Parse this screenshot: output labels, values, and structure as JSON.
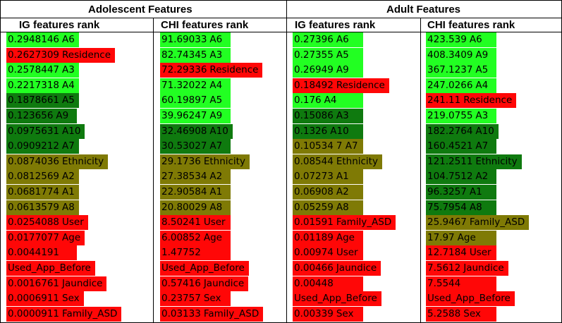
{
  "colors": {
    "light_green": "#22ff22",
    "dark_green": "#0f7a0f",
    "olive": "#7f7a05",
    "red": "#ff0707"
  },
  "headers": {
    "adolescent": "Adolescent Features",
    "adult": "Adult Features",
    "ig_adolescent": "IG features rank",
    "chi_adolescent": "CHI features rank",
    "ig_adult": "IG features rank",
    "chi_adult": "CHI features rank"
  },
  "columns": [
    {
      "rows": [
        {
          "value": "0.2948146",
          "feature": "A6",
          "color": "light_green"
        },
        {
          "value": "0.2627309",
          "feature": "Residence",
          "color": "red"
        },
        {
          "value": "0.2578447",
          "feature": "A3",
          "color": "light_green"
        },
        {
          "value": "0.2217318",
          "feature": "A4",
          "color": "light_green"
        },
        {
          "value": "0.1878661",
          "feature": "A5",
          "color": "dark_green"
        },
        {
          "value": "0.123656",
          "feature": "A9",
          "color": "dark_green"
        },
        {
          "value": "0.0975631",
          "feature": "A10",
          "color": "dark_green"
        },
        {
          "value": "0.0909212",
          "feature": "A7",
          "color": "dark_green"
        },
        {
          "value": "0.0874036",
          "feature": "Ethnicity",
          "color": "olive"
        },
        {
          "value": "0.0812569",
          "feature": "A2",
          "color": "olive"
        },
        {
          "value": "0.0681774",
          "feature": "A1",
          "color": "olive"
        },
        {
          "value": "0.0613579",
          "feature": "A8",
          "color": "olive"
        },
        {
          "value": "0.0254088",
          "feature": "User",
          "color": "red"
        },
        {
          "value": "0.0177077",
          "feature": "Age",
          "color": "red"
        },
        {
          "value": "0.0044191",
          "feature": "",
          "color": "red"
        },
        {
          "value": "Used_App_Before",
          "feature": "",
          "color": "red"
        },
        {
          "value": "0.0016761",
          "feature": "Jaundice",
          "color": "red"
        },
        {
          "value": "0.0006911",
          "feature": "Sex",
          "color": "red"
        },
        {
          "value": "0.0000911",
          "feature": "Family_ASD",
          "color": "red"
        }
      ]
    },
    {
      "rows": [
        {
          "value": "91.69033",
          "feature": "A6",
          "color": "light_green"
        },
        {
          "value": "82.74345",
          "feature": "A3",
          "color": "light_green"
        },
        {
          "value": "72.29336",
          "feature": "Residence",
          "color": "red"
        },
        {
          "value": "71.32022",
          "feature": "A4",
          "color": "light_green"
        },
        {
          "value": "60.19897",
          "feature": "A5",
          "color": "light_green"
        },
        {
          "value": "39.96247",
          "feature": "A9",
          "color": "light_green"
        },
        {
          "value": "32.46908",
          "feature": "A10",
          "color": "dark_green"
        },
        {
          "value": "30.53027",
          "feature": "A7",
          "color": "dark_green"
        },
        {
          "value": "29.1736",
          "feature": "Ethnicity",
          "color": "olive"
        },
        {
          "value": "27.38534",
          "feature": "A2",
          "color": "olive"
        },
        {
          "value": "22.90584",
          "feature": "A1",
          "color": "olive"
        },
        {
          "value": "20.80029",
          "feature": "A8",
          "color": "olive"
        },
        {
          "value": "8.50241",
          "feature": "User",
          "color": "red"
        },
        {
          "value": "6.00852",
          "feature": "Age",
          "color": "red"
        },
        {
          "value": "1.47752",
          "feature": "",
          "color": "red"
        },
        {
          "value": "Used_App_Before",
          "feature": "",
          "color": "red"
        },
        {
          "value": "0.57416",
          "feature": "Jaundice",
          "color": "red"
        },
        {
          "value": "0.23757",
          "feature": "Sex",
          "color": "red"
        },
        {
          "value": "0.03133",
          "feature": "Family_ASD",
          "color": "red"
        }
      ]
    },
    {
      "rows": [
        {
          "value": "0.27396",
          "feature": "A6",
          "color": "light_green"
        },
        {
          "value": "0.27355",
          "feature": "A5",
          "color": "light_green"
        },
        {
          "value": "0.26949",
          "feature": "A9",
          "color": "light_green"
        },
        {
          "value": "0.18492",
          "feature": "Residence",
          "color": "red"
        },
        {
          "value": "0.176",
          "feature": "A4",
          "color": "light_green"
        },
        {
          "value": "0.15086",
          "feature": "A3",
          "color": "dark_green"
        },
        {
          "value": "0.1326",
          "feature": "A10",
          "color": "dark_green"
        },
        {
          "value": "0.10534",
          "feature": "7 A7",
          "color": "olive"
        },
        {
          "value": "0.08544",
          "feature": "Ethnicity",
          "color": "olive"
        },
        {
          "value": "0.07273",
          "feature": "A1",
          "color": "olive"
        },
        {
          "value": "0.06908",
          "feature": "A2",
          "color": "olive"
        },
        {
          "value": "0.05259",
          "feature": "A8",
          "color": "olive"
        },
        {
          "value": "0.01591",
          "feature": "Family_ASD",
          "color": "red"
        },
        {
          "value": "0.01189",
          "feature": "Age",
          "color": "red"
        },
        {
          "value": "0.00974",
          "feature": "User",
          "color": "red"
        },
        {
          "value": "0.00466",
          "feature": "Jaundice",
          "color": "red"
        },
        {
          "value": "0.00448",
          "feature": "",
          "color": "red"
        },
        {
          "value": "Used_App_Before",
          "feature": "",
          "color": "red"
        },
        {
          "value": "0.00339",
          "feature": "Sex",
          "color": "red"
        }
      ]
    },
    {
      "rows": [
        {
          "value": "423.539",
          "feature": "A6",
          "color": "light_green"
        },
        {
          "value": "408.3409",
          "feature": "A9",
          "color": "light_green"
        },
        {
          "value": "367.1237",
          "feature": "A5",
          "color": "light_green"
        },
        {
          "value": "247.0266",
          "feature": "A4",
          "color": "light_green"
        },
        {
          "value": "241.11",
          "feature": "Residence",
          "color": "red"
        },
        {
          "value": "219.0755",
          "feature": "A3",
          "color": "light_green"
        },
        {
          "value": "182.2764",
          "feature": "A10",
          "color": "dark_green"
        },
        {
          "value": "160.4521",
          "feature": "A7",
          "color": "dark_green"
        },
        {
          "value": "121.2511",
          "feature": "Ethnicity",
          "color": "dark_green"
        },
        {
          "value": "104.7512",
          "feature": "A2",
          "color": "dark_green"
        },
        {
          "value": "96.3257",
          "feature": "A1",
          "color": "dark_green"
        },
        {
          "value": "75.7954",
          "feature": "A8",
          "color": "dark_green"
        },
        {
          "value": "25.9467",
          "feature": "Family_ASD",
          "color": "olive"
        },
        {
          "value": "17.97",
          "feature": "Age",
          "color": "olive"
        },
        {
          "value": "12.7184",
          "feature": "User",
          "color": "red"
        },
        {
          "value": "7.5612",
          "feature": "Jaundice",
          "color": "red"
        },
        {
          "value": "7.5544",
          "feature": "",
          "color": "red"
        },
        {
          "value": "Used_App_Before",
          "feature": "",
          "color": "red"
        },
        {
          "value": "5.2588",
          "feature": "Sex",
          "color": "red"
        }
      ]
    }
  ]
}
